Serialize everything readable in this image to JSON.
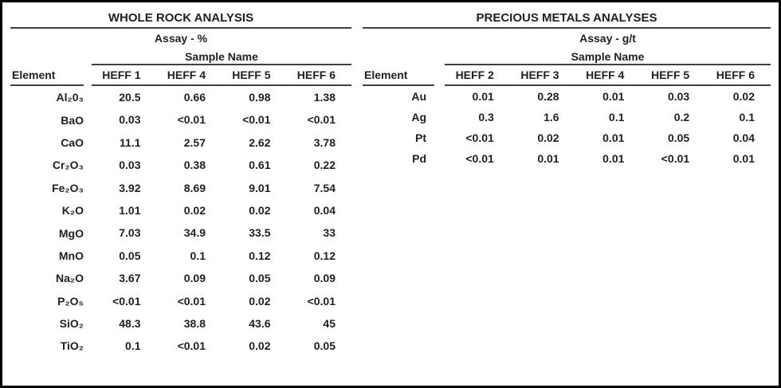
{
  "colors": {
    "outer_border": "#000000",
    "rule_line": "#3f3f3f",
    "text": "#1f1f1f"
  },
  "whole_rock": {
    "title": "WHOLE ROCK ANALYSIS",
    "assay_unit_label": "Assay - %",
    "sample_name_label": "Sample Name",
    "element_header": "Element",
    "sample_headers": [
      "HEFF 1",
      "HEFF 4",
      "HEFF 5",
      "HEFF 6"
    ],
    "rows": [
      {
        "element": "Al₂0₃",
        "values": [
          "20.5",
          "0.66",
          "0.98",
          "1.38"
        ]
      },
      {
        "element": "BaO",
        "values": [
          "0.03",
          "<0.01",
          "<0.01",
          "<0.01"
        ]
      },
      {
        "element": "CaO",
        "values": [
          "11.1",
          "2.57",
          "2.62",
          "3.78"
        ]
      },
      {
        "element": "Cr₂O₃",
        "values": [
          "0.03",
          "0.38",
          "0.61",
          "0.22"
        ]
      },
      {
        "element": "Fe₂O₃",
        "values": [
          "3.92",
          "8.69",
          "9.01",
          "7.54"
        ]
      },
      {
        "element": "K₂O",
        "values": [
          "1.01",
          "0.02",
          "0.02",
          "0.04"
        ]
      },
      {
        "element": "MgO",
        "values": [
          "7.03",
          "34.9",
          "33.5",
          "33"
        ]
      },
      {
        "element": "MnO",
        "values": [
          "0.05",
          "0.1",
          "0.12",
          "0.12"
        ]
      },
      {
        "element": "Na₂O",
        "values": [
          "3.67",
          "0.09",
          "0.05",
          "0.09"
        ]
      },
      {
        "element": "P₂O₅",
        "values": [
          "<0.01",
          "<0.01",
          "0.02",
          "<0.01"
        ]
      },
      {
        "element": "SiO₂",
        "values": [
          "48.3",
          "38.8",
          "43.6",
          "45"
        ]
      },
      {
        "element": "TiO₂",
        "values": [
          "0.1",
          "<0.01",
          "0.02",
          "0.05"
        ]
      }
    ]
  },
  "precious_metals": {
    "title": "PRECIOUS METALS ANALYSES",
    "assay_unit_label": "Assay - g/t",
    "sample_name_label": "Sample Name",
    "element_header": "Element",
    "sample_headers": [
      "HEFF 2",
      "HEFF 3",
      "HEFF 4",
      "HEFF 5",
      "HEFF 6"
    ],
    "rows": [
      {
        "element": "Au",
        "values": [
          "0.01",
          "0.28",
          "0.01",
          "0.03",
          "0.02"
        ]
      },
      {
        "element": "Ag",
        "values": [
          "0.3",
          "1.6",
          "0.1",
          "0.2",
          "0.1"
        ]
      },
      {
        "element": "Pt",
        "values": [
          "<0.01",
          "0.02",
          "0.01",
          "0.05",
          "0.04"
        ]
      },
      {
        "element": "Pd",
        "values": [
          "<0.01",
          "0.01",
          "0.01",
          "<0.01",
          "0.01"
        ]
      }
    ]
  }
}
